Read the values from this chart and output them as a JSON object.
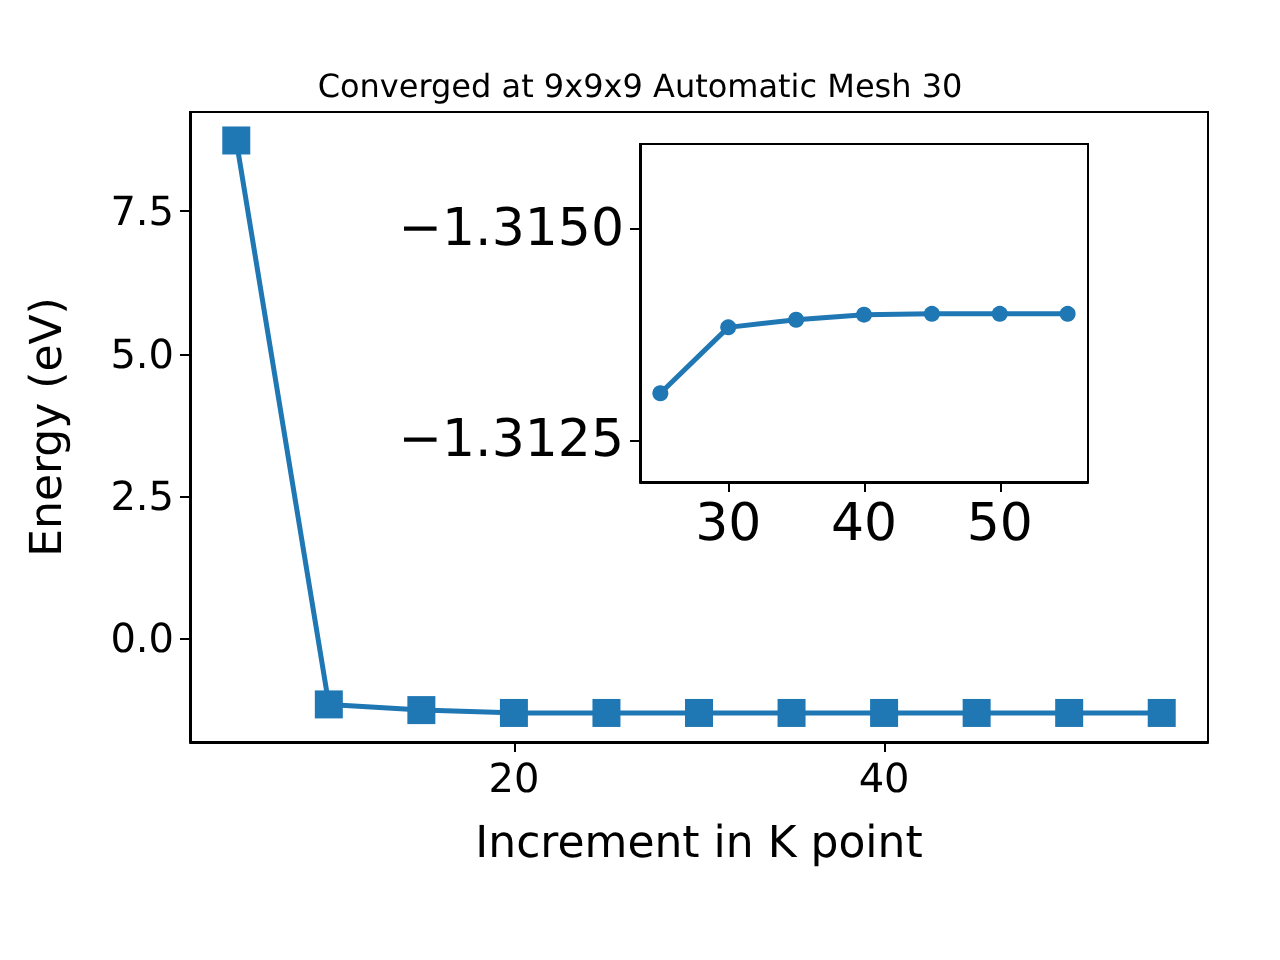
{
  "chart_data": [
    {
      "type": "line",
      "title": "Converged at 9x9x9 Automatic Mesh 30",
      "xlabel": "Increment in K point",
      "ylabel": "Energy (eV)",
      "x": [
        5,
        10,
        15,
        20,
        25,
        30,
        35,
        40,
        45,
        50,
        55
      ],
      "series": [
        {
          "color": "#1f77b4",
          "values": [
            8.74,
            -1.16,
            -1.26,
            -1.31,
            -1.31,
            -1.31,
            -1.31,
            -1.31,
            -1.31,
            -1.31,
            -1.31
          ]
        }
      ],
      "xlim": [
        2.5,
        57.5
      ],
      "xticks": [
        20,
        40
      ],
      "ylim": [
        -1.82,
        9.24
      ],
      "yticks": [
        {
          "value": 0,
          "label": "0.0"
        },
        {
          "value": 2.5,
          "label": "2.5"
        },
        {
          "value": 5,
          "label": "5.0"
        },
        {
          "value": 7.5,
          "label": "7.5"
        }
      ],
      "marker": "square",
      "grid": false
    },
    {
      "type": "line",
      "x": [
        25,
        30,
        35,
        40,
        45,
        50,
        55
      ],
      "series": [
        {
          "color": "#1f77b4",
          "values": [
            -1.31305,
            -1.31383,
            -1.31392,
            -1.31398,
            -1.31399,
            -1.31399,
            -1.31399
          ]
        }
      ],
      "xlim": [
        23.5,
        56.5
      ],
      "xticks": [
        30,
        40,
        50
      ],
      "ylim": [
        -1.312,
        -1.316
      ],
      "yticks": [
        {
          "value": -1.315,
          "label": "−1.3150"
        },
        {
          "value": -1.3125,
          "label": "−1.3125"
        }
      ],
      "marker": "circle",
      "grid": false
    }
  ]
}
